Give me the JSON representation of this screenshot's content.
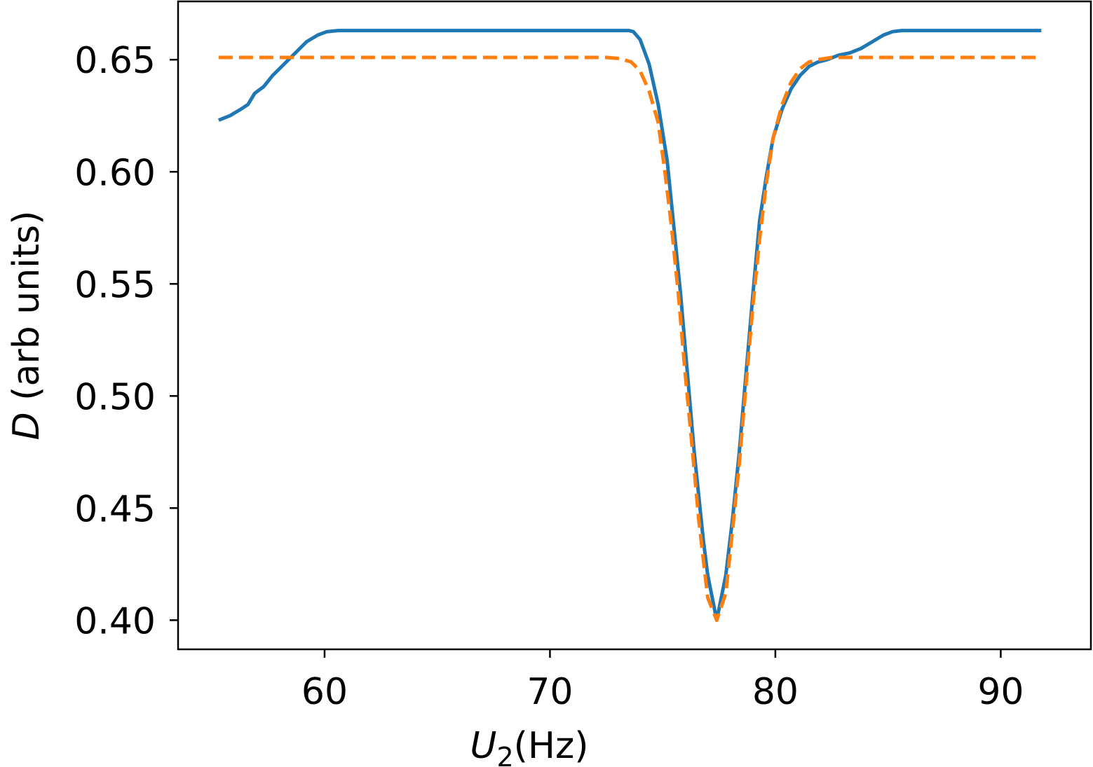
{
  "chart_data": {
    "type": "line",
    "xlabel": {
      "symbol": "U",
      "subscript": "2",
      "unit": "(Hz)"
    },
    "ylabel": {
      "symbol": "D",
      "unit": " (arb units)"
    },
    "xlim": [
      53.5,
      94.0
    ],
    "ylim": [
      0.387,
      0.676
    ],
    "xticks": [
      60,
      70,
      80,
      90
    ],
    "xtick_labels": [
      "60",
      "70",
      "80",
      "90"
    ],
    "yticks": [
      0.4,
      0.45,
      0.5,
      0.55,
      0.6,
      0.65
    ],
    "ytick_labels": [
      "0.40",
      "0.45",
      "0.50",
      "0.55",
      "0.60",
      "0.65"
    ],
    "grid": false,
    "series": [
      {
        "color": "#1f77b4",
        "style": "solid",
        "points": [
          [
            55.3,
            0.623
          ],
          [
            55.8,
            0.625
          ],
          [
            56.3,
            0.628
          ],
          [
            56.6,
            0.63
          ],
          [
            56.9,
            0.635
          ],
          [
            57.3,
            0.638
          ],
          [
            57.7,
            0.643
          ],
          [
            58.2,
            0.648
          ],
          [
            58.7,
            0.653
          ],
          [
            59.2,
            0.658
          ],
          [
            59.7,
            0.661
          ],
          [
            60.1,
            0.6625
          ],
          [
            60.6,
            0.663
          ],
          [
            61.5,
            0.663
          ],
          [
            65,
            0.663
          ],
          [
            70,
            0.663
          ],
          [
            73.5,
            0.663
          ],
          [
            73.7,
            0.6625
          ],
          [
            74.0,
            0.659
          ],
          [
            74.4,
            0.648
          ],
          [
            74.8,
            0.63
          ],
          [
            75.2,
            0.605
          ],
          [
            75.5,
            0.575
          ],
          [
            75.8,
            0.545
          ],
          [
            76.1,
            0.51
          ],
          [
            76.4,
            0.475
          ],
          [
            76.8,
            0.436
          ],
          [
            77.0,
            0.42
          ],
          [
            77.4,
            0.4
          ],
          [
            77.8,
            0.42
          ],
          [
            78.1,
            0.445
          ],
          [
            78.4,
            0.475
          ],
          [
            78.7,
            0.51
          ],
          [
            79.0,
            0.545
          ],
          [
            79.3,
            0.578
          ],
          [
            79.6,
            0.598
          ],
          [
            79.9,
            0.615
          ],
          [
            80.3,
            0.628
          ],
          [
            80.7,
            0.637
          ],
          [
            81.1,
            0.643
          ],
          [
            81.5,
            0.647
          ],
          [
            81.9,
            0.649
          ],
          [
            82.3,
            0.65
          ],
          [
            82.8,
            0.652
          ],
          [
            83.3,
            0.653
          ],
          [
            83.8,
            0.655
          ],
          [
            84.3,
            0.658
          ],
          [
            84.8,
            0.661
          ],
          [
            85.2,
            0.6625
          ],
          [
            85.6,
            0.663
          ],
          [
            88,
            0.663
          ],
          [
            91.8,
            0.663
          ]
        ]
      },
      {
        "color": "#ff7f0e",
        "style": "dashed",
        "points": [
          [
            55.3,
            0.651
          ],
          [
            60,
            0.651
          ],
          [
            65,
            0.651
          ],
          [
            70,
            0.651
          ],
          [
            72.5,
            0.651
          ],
          [
            73.1,
            0.6505
          ],
          [
            73.6,
            0.649
          ],
          [
            74.0,
            0.645
          ],
          [
            74.4,
            0.636
          ],
          [
            74.8,
            0.622
          ],
          [
            75.1,
            0.6
          ],
          [
            75.4,
            0.575
          ],
          [
            75.7,
            0.545
          ],
          [
            76.0,
            0.51
          ],
          [
            76.3,
            0.478
          ],
          [
            76.6,
            0.445
          ],
          [
            77.0,
            0.41
          ],
          [
            77.4,
            0.4
          ],
          [
            77.8,
            0.412
          ],
          [
            78.1,
            0.44
          ],
          [
            78.4,
            0.47
          ],
          [
            78.7,
            0.505
          ],
          [
            79.0,
            0.54
          ],
          [
            79.3,
            0.57
          ],
          [
            79.6,
            0.595
          ],
          [
            79.9,
            0.615
          ],
          [
            80.3,
            0.63
          ],
          [
            80.7,
            0.64
          ],
          [
            81.1,
            0.646
          ],
          [
            81.5,
            0.649
          ],
          [
            81.9,
            0.65
          ],
          [
            82.5,
            0.651
          ],
          [
            85,
            0.651
          ],
          [
            88,
            0.651
          ],
          [
            91.8,
            0.651
          ]
        ]
      }
    ]
  }
}
